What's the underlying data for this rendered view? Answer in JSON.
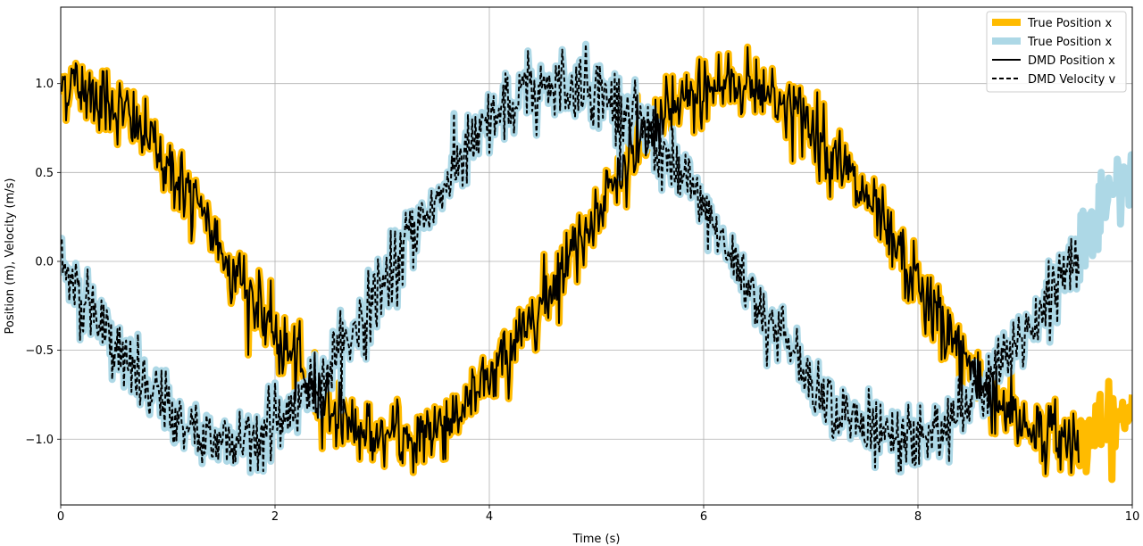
{
  "chart_data": {
    "type": "line",
    "title": "",
    "xlabel": "Time (s)",
    "ylabel": "Position (m), Velocity (m/s)",
    "xlim": [
      0,
      10
    ],
    "ylim": [
      -1.37,
      1.43
    ],
    "xticks": [
      0,
      2,
      4,
      6,
      8,
      10
    ],
    "yticks": [
      -1.0,
      -0.5,
      0.0,
      0.5,
      1.0
    ],
    "xtick_labels": [
      "0",
      "2",
      "4",
      "6",
      "8",
      "10"
    ],
    "ytick_labels": [
      "−1.0",
      "−0.5",
      "0.0",
      "0.5",
      "1.0"
    ],
    "grid": true,
    "legend_position": "top-right",
    "dmd_end_time": 9.5,
    "series": [
      {
        "name": "True Position x",
        "color": "#ffbb00",
        "style": "thick",
        "model": "cos",
        "amplitude": 1.0,
        "period": 6.283,
        "noise_std": 0.1
      },
      {
        "name": "True Position x",
        "color": "#add8e6",
        "style": "thick",
        "model": "-sin",
        "amplitude": 1.0,
        "period": 6.283,
        "noise_std": 0.1
      },
      {
        "name": "DMD Position x",
        "color": "#000000",
        "style": "solid",
        "model": "cos",
        "amplitude": 1.0,
        "period": 6.283,
        "noise_std": 0.1
      },
      {
        "name": "DMD Velocity v",
        "color": "#000000",
        "style": "dashed",
        "model": "-sin",
        "amplitude": 1.0,
        "period": 6.283,
        "noise_std": 0.1
      }
    ],
    "samples": [
      {
        "t": 0.0,
        "x": 0.95,
        "v": 0.1
      },
      {
        "t": 0.5,
        "x": 0.88,
        "v": -0.45
      },
      {
        "t": 1.0,
        "x": 0.55,
        "v": -0.85
      },
      {
        "t": 1.5,
        "x": 0.07,
        "v": -0.98
      },
      {
        "t": 2.0,
        "x": -0.42,
        "v": -0.92
      },
      {
        "t": 2.5,
        "x": -0.8,
        "v": -0.6
      },
      {
        "t": 3.0,
        "x": -0.99,
        "v": -0.15
      },
      {
        "t": 3.5,
        "x": -0.94,
        "v": 0.35
      },
      {
        "t": 4.0,
        "x": -0.65,
        "v": 0.76
      },
      {
        "t": 4.5,
        "x": -0.21,
        "v": 0.98
      },
      {
        "t": 5.0,
        "x": 0.28,
        "v": 0.96
      },
      {
        "t": 5.5,
        "x": 0.71,
        "v": 0.71
      },
      {
        "t": 6.0,
        "x": 0.96,
        "v": 0.28
      },
      {
        "t": 6.5,
        "x": 0.98,
        "v": -0.22
      },
      {
        "t": 7.0,
        "x": 0.75,
        "v": -0.66
      },
      {
        "t": 7.5,
        "x": 0.35,
        "v": -0.94
      },
      {
        "t": 8.0,
        "x": -0.15,
        "v": -0.99
      },
      {
        "t": 8.5,
        "x": -0.6,
        "v": -0.8
      },
      {
        "t": 9.0,
        "x": -0.91,
        "v": -0.41
      },
      {
        "t": 9.5,
        "x": -1.0,
        "v": 0.07
      },
      {
        "t": 10.0,
        "x": -0.84,
        "v": 0.54
      }
    ]
  }
}
